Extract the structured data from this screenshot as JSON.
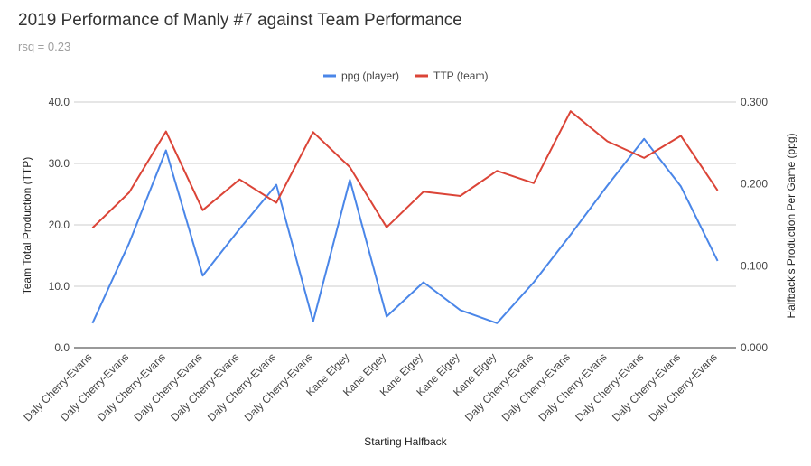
{
  "chart_data": {
    "type": "line",
    "title": "2019 Performance of Manly #7 against Team Performance",
    "subtitle": "rsq = 0.23",
    "xlabel": "Starting Halfback",
    "ylabel_left": "Team Total Production (TTP)",
    "ylabel_right": "Halfback's Production Per Game (ppg)",
    "left_ticks": [
      "0.0",
      "10.0",
      "20.0",
      "30.0",
      "40.0"
    ],
    "right_ticks": [
      "0.000",
      "0.100",
      "0.200",
      "0.300"
    ],
    "ylim_left": [
      0,
      40
    ],
    "ylim_right": [
      0,
      0.3
    ],
    "grid": true,
    "legend_position": "top",
    "categories": [
      "Daly Cherry-Evans",
      "Daly Cherry-Evans",
      "Daly Cherry-Evans",
      "Daly Cherry-Evans",
      "Daly Cherry-Evans",
      "Daly Cherry-Evans",
      "Daly Cherry-Evans",
      "Kane Elgey",
      "Kane Elgey",
      "Kane Elgey",
      "Kane Elgey",
      "Kane Elgey",
      "Daly Cherry-Evans",
      "Daly Cherry-Evans",
      "Daly Cherry-Evans",
      "Daly Cherry-Evans",
      "Daly Cherry-Evans",
      "Daly Cherry-Evans"
    ],
    "series": [
      {
        "name": "ppg (player)",
        "axis": "right",
        "color": "#4a86e8",
        "values": [
          0.03,
          0.128,
          0.241,
          0.088,
          0.145,
          0.199,
          0.032,
          0.205,
          0.038,
          0.08,
          0.046,
          0.03,
          0.08,
          0.138,
          0.198,
          0.255,
          0.197,
          0.106
        ]
      },
      {
        "name": "TTP (team)",
        "axis": "left",
        "color": "#db4437",
        "values": [
          19.5,
          25.3,
          35.2,
          22.4,
          27.4,
          23.6,
          35.1,
          29.4,
          19.6,
          25.4,
          24.7,
          28.8,
          26.8,
          38.5,
          33.6,
          30.9,
          34.5,
          25.6
        ]
      }
    ]
  }
}
